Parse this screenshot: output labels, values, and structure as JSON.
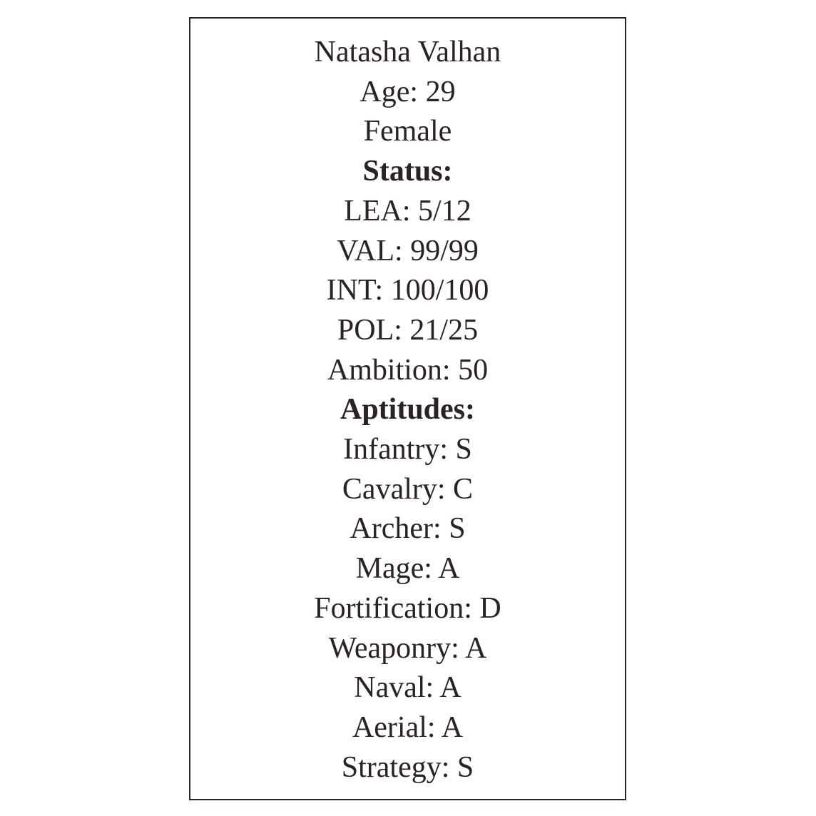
{
  "character_card": {
    "name": "Natasha Valhan",
    "age": "Age: 29",
    "gender": "Female",
    "status": {
      "heading": "Status:",
      "lines": [
        "LEA: 5/12",
        "VAL: 99/99",
        "INT: 100/100",
        "POL: 21/25",
        "Ambition: 50"
      ]
    },
    "aptitudes": {
      "heading": "Aptitudes:",
      "lines": [
        "Infantry: S",
        "Cavalry: C",
        "Archer: S",
        "Mage: A",
        "Fortification: D",
        "Weaponry: A",
        "Naval: A",
        "Aerial: A",
        "Strategy: S"
      ]
    }
  },
  "colors": {
    "text": "#2b2226",
    "border": "#2b2226",
    "background": "#ffffff"
  }
}
